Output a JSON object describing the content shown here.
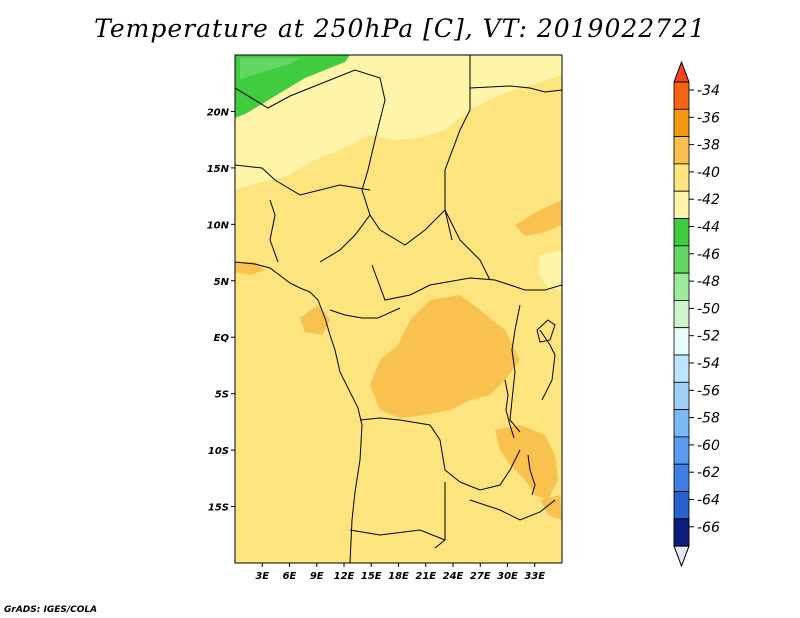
{
  "title": "Temperature at 250hPa [C], VT: 2019022721",
  "credit": "GrADS: IGES/COLA",
  "map": {
    "lon_range_deg": [
      0,
      36
    ],
    "lat_range_deg": [
      -20,
      25
    ],
    "lat_ticks": [
      "20N",
      "15N",
      "10N",
      "5N",
      "EQ",
      "5S",
      "10S",
      "15S"
    ],
    "lon_ticks": [
      "3E",
      "6E",
      "9E",
      "12E",
      "15E",
      "18E",
      "21E",
      "24E",
      "27E",
      "30E",
      "33E"
    ],
    "background_level_color": "#fde47f",
    "region_colors": {
      "northern_belt": "#fff5a8",
      "cold_patch": "#3fcc3f",
      "cold_patch_edge": "#63d663",
      "warm_patches": "#f9c24f"
    }
  },
  "colorbar": {
    "labels": [
      "-34",
      "-36",
      "-38",
      "-40",
      "-42",
      "-44",
      "-46",
      "-48",
      "-50",
      "-52",
      "-54",
      "-56",
      "-58",
      "-60",
      "-62",
      "-64",
      "-66"
    ],
    "top_arrow_color": "#f54323",
    "bottom_arrow_color": "#e6e6ff",
    "colors": [
      "#f56413",
      "#f59a0f",
      "#f9bf4f",
      "#fde47f",
      "#fff5a8",
      "#3fcc3f",
      "#63d663",
      "#9cea9c",
      "#ccf5cc",
      "#eafdfd",
      "#bbe6fd",
      "#9fd0fa",
      "#7cb8f5",
      "#5a9df0",
      "#3f7fe6",
      "#2a5fd0",
      "#1a3fae",
      "#0a1e7e"
    ]
  }
}
